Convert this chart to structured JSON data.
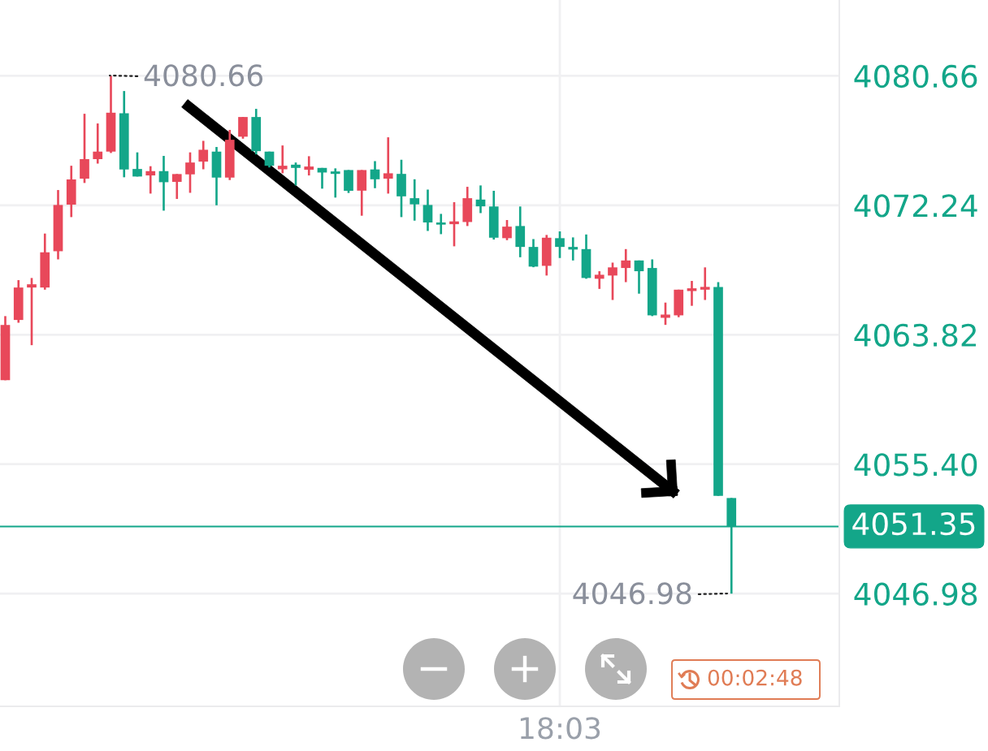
{
  "chart_data": {
    "type": "candlestick",
    "categories": [
      null,
      null,
      null,
      null,
      null,
      null,
      null,
      null,
      null,
      null,
      null,
      null,
      null,
      null,
      null,
      null,
      null,
      null,
      null,
      null,
      null,
      null,
      null,
      null,
      null,
      null,
      null,
      null,
      null,
      null,
      null,
      null,
      null,
      null,
      null,
      null,
      null,
      null,
      null,
      null,
      null,
      null,
      "18:03",
      null,
      null,
      null,
      null,
      null,
      null,
      null,
      null,
      null,
      null,
      null,
      null,
      null
    ],
    "ohlc": [
      [
        4060.86,
        4065.03,
        4060.86,
        4064.46
      ],
      [
        4064.78,
        4067.37,
        4064.6,
        4066.89
      ],
      [
        4066.89,
        4067.51,
        4063.14,
        4067.1
      ],
      [
        4066.89,
        4070.4,
        4066.75,
        4069.18
      ],
      [
        4069.25,
        4073.23,
        4068.72,
        4072.26
      ],
      [
        4072.28,
        4074.81,
        4071.47,
        4073.92
      ],
      [
        4073.97,
        4078.19,
        4073.69,
        4075.24
      ],
      [
        4075.24,
        4077.56,
        4074.95,
        4075.73
      ],
      [
        4075.73,
        4080.66,
        4075.64,
        4078.26
      ],
      [
        4078.23,
        4079.67,
        4074.06,
        4074.57
      ],
      [
        4074.6,
        4075.68,
        4074.11,
        4074.11
      ],
      [
        4074.18,
        4074.78,
        4073.0,
        4074.46
      ],
      [
        4074.46,
        4075.45,
        4071.89,
        4073.74
      ],
      [
        4073.76,
        4074.27,
        4072.65,
        4074.27
      ],
      [
        4074.25,
        4075.68,
        4073.05,
        4075.02
      ],
      [
        4075.08,
        4076.43,
        4074.58,
        4075.85
      ],
      [
        4075.73,
        4076.03,
        4072.24,
        4074.04
      ],
      [
        4074.04,
        4077.14,
        4073.88,
        4076.5
      ],
      [
        4076.7,
        4077.98,
        4076.57,
        4077.98
      ],
      [
        4077.98,
        4078.51,
        4075.55,
        4075.76
      ],
      [
        4075.73,
        4075.73,
        4074.7,
        4074.81
      ],
      [
        4074.58,
        4076.13,
        4074.32,
        4074.81
      ],
      [
        4074.88,
        4075.02,
        4073.53,
        4074.67
      ],
      [
        4074.55,
        4075.43,
        4074.18,
        4074.76
      ],
      [
        4074.67,
        4074.67,
        4073.32,
        4074.37
      ],
      [
        4074.44,
        4074.64,
        4072.74,
        4074.28
      ],
      [
        4074.53,
        4074.53,
        4073.04,
        4073.18
      ],
      [
        4073.19,
        4074.53,
        4071.56,
        4074.53
      ],
      [
        4074.57,
        4075.11,
        4073.35,
        4073.93
      ],
      [
        4073.97,
        4076.66,
        4073.0,
        4074.32
      ],
      [
        4074.28,
        4075.2,
        4071.47,
        4072.82
      ],
      [
        4072.7,
        4073.93,
        4071.24,
        4072.3
      ],
      [
        4072.26,
        4073.26,
        4070.57,
        4071.12
      ],
      [
        4071.12,
        4071.68,
        4070.36,
        4070.98
      ],
      [
        4071.01,
        4072.44,
        4069.57,
        4071.19
      ],
      [
        4071.15,
        4073.44,
        4070.89,
        4072.7
      ],
      [
        4072.61,
        4073.53,
        4071.73,
        4072.17
      ],
      [
        4072.16,
        4073.18,
        4070.01,
        4070.13
      ],
      [
        4070.1,
        4071.28,
        4069.97,
        4070.85
      ],
      [
        4070.89,
        4072.16,
        4068.86,
        4069.53
      ],
      [
        4069.53,
        4070.04,
        4068.21,
        4068.25
      ],
      [
        4068.3,
        4070.31,
        4067.67,
        4070.13
      ],
      [
        4070.1,
        4070.54,
        4068.81,
        4069.53
      ],
      [
        4069.53,
        4070.15,
        4068.65,
        4069.36
      ],
      [
        4069.39,
        4070.34,
        4067.46,
        4067.51
      ],
      [
        4067.46,
        4067.95,
        4066.8,
        4067.72
      ],
      [
        4067.67,
        4068.51,
        4066.08,
        4068.2
      ],
      [
        4068.16,
        4069.39,
        4067.24,
        4068.65
      ],
      [
        4068.65,
        4068.65,
        4066.49,
        4067.95
      ],
      [
        4068.16,
        4068.72,
        4065.03,
        4065.08
      ],
      [
        4064.92,
        4065.91,
        4064.46,
        4065.13
      ],
      [
        4065.08,
        4066.75,
        4064.96,
        4066.75
      ],
      [
        4066.66,
        4067.32,
        4065.7,
        4066.84
      ],
      [
        4066.75,
        4068.2,
        4066.08,
        4066.93
      ],
      [
        4066.93,
        4067.24,
        4053.34,
        4053.34
      ],
      [
        4053.2,
        4053.2,
        4046.98,
        4051.35
      ]
    ],
    "colors": [
      "#e8485a",
      "#e8485a",
      "#e8485a",
      "#e8485a",
      "#e8485a",
      "#e8485a",
      "#e8485a",
      "#e8485a",
      "#e8485a",
      "#13a689",
      "#13a689",
      "#e8485a",
      "#13a689",
      "#e8485a",
      "#e8485a",
      "#e8485a",
      "#13a689",
      "#e8485a",
      "#e8485a",
      "#13a689",
      "#13a689",
      "#e8485a",
      "#13a689",
      "#e8485a",
      "#13a689",
      "#13a689",
      "#13a689",
      "#e8485a",
      "#13a689",
      "#e8485a",
      "#13a689",
      "#13a689",
      "#13a689",
      "#13a689",
      "#e8485a",
      "#e8485a",
      "#13a689",
      "#13a689",
      "#e8485a",
      "#13a689",
      "#13a689",
      "#e8485a",
      "#13a689",
      "#13a689",
      "#13a689",
      "#e8485a",
      "#e8485a",
      "#e8485a",
      "#13a689",
      "#13a689",
      "#e8485a",
      "#e8485a",
      "#e8485a",
      "#e8485a",
      "#13a689",
      "#13a689"
    ],
    "ylim": [
      4039.65,
      4085.59
    ],
    "yticks": [
      4046.98,
      {
        "value": 4055.4,
        "label": "4055.40"
      },
      4063.82,
      4072.24,
      4080.66
    ],
    "grid": true,
    "ref_lines": [
      {
        "axis": "y",
        "value": 4051.35,
        "label": "4051.35",
        "color": "#13a689"
      }
    ],
    "annotations": [
      "4080.66",
      "4046.98",
      "00:02:48"
    ]
  }
}
